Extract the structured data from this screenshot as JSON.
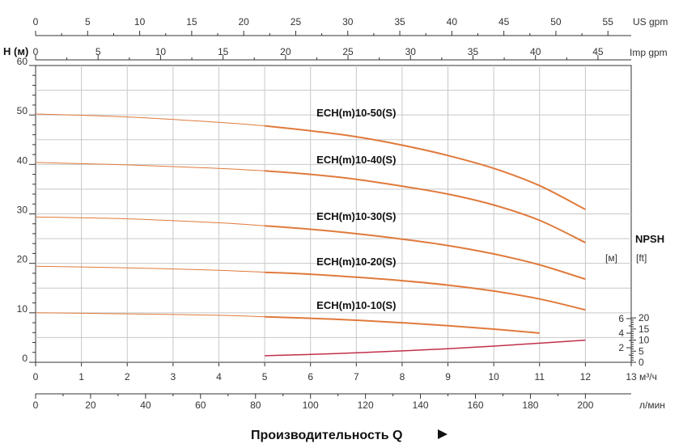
{
  "colors": {
    "head_curve": "#e07a3c",
    "npsh_curve": "#c0304a",
    "grid": "#c8c8c8",
    "axis": "#333333"
  },
  "chart_data": {
    "type": "line",
    "title": "",
    "xlabel": "Производительность Q",
    "ylabel": "H (м)",
    "x_unit": "м³/ч",
    "xlim": [
      0,
      13
    ],
    "ylim": [
      0,
      60
    ],
    "grid": true,
    "x_ticks": [
      0,
      1,
      2,
      3,
      4,
      5,
      6,
      7,
      8,
      9,
      10,
      11,
      12,
      13
    ],
    "y_ticks": [
      0,
      10,
      20,
      30,
      40,
      50,
      60
    ],
    "secondary_axes": {
      "us_gpm": {
        "unit": "US gpm",
        "ticks": [
          0,
          5,
          10,
          15,
          20,
          25,
          30,
          35,
          40,
          45,
          50,
          55
        ],
        "per_m3h": 4.4029
      },
      "imp_gpm": {
        "unit": "Imp gpm",
        "ticks": [
          0,
          5,
          10,
          15,
          20,
          25,
          30,
          35,
          40,
          45
        ],
        "per_m3h": 3.6662
      },
      "l_min": {
        "unit": "л/мин",
        "ticks": [
          0,
          20,
          40,
          60,
          80,
          100,
          120,
          140,
          160,
          180,
          200
        ],
        "per_m3h": 16.6667
      }
    },
    "npsh_axis": {
      "title": "NPSH",
      "m_unit": "[м]",
      "ft_unit": "[ft]",
      "m_ticks": [
        2,
        4,
        6
      ],
      "ft_ticks": [
        0,
        5,
        10,
        15,
        20
      ],
      "m_labeled": [
        2,
        4,
        6
      ],
      "ft_labeled": [
        0,
        5,
        10,
        15,
        20
      ]
    },
    "series": [
      {
        "name": "ECH(m)10-50(S)",
        "x": [
          0,
          2,
          4,
          5,
          6,
          7,
          8,
          9,
          10,
          11,
          12
        ],
        "y": [
          50.2,
          49.6,
          48.5,
          47.8,
          46.8,
          45.6,
          43.9,
          41.8,
          39.2,
          35.7,
          30.9
        ]
      },
      {
        "name": "ECH(m)10-40(S)",
        "x": [
          0,
          2,
          4,
          5,
          6,
          7,
          8,
          9,
          10,
          11,
          12
        ],
        "y": [
          40.4,
          39.9,
          39.2,
          38.7,
          38.0,
          37.0,
          35.6,
          34.0,
          31.8,
          28.7,
          24.2
        ]
      },
      {
        "name": "ECH(m)10-30(S)",
        "x": [
          0,
          2,
          4,
          5,
          6,
          7,
          8,
          9,
          10,
          11,
          12
        ],
        "y": [
          29.4,
          29.0,
          28.2,
          27.6,
          26.9,
          26.0,
          24.9,
          23.6,
          21.9,
          19.7,
          16.8
        ]
      },
      {
        "name": "ECH(m)10-20(S)",
        "x": [
          0,
          2,
          4,
          5,
          6,
          7,
          8,
          9,
          10,
          11,
          12
        ],
        "y": [
          19.4,
          19.1,
          18.6,
          18.2,
          17.8,
          17.2,
          16.5,
          15.6,
          14.4,
          12.8,
          10.6
        ]
      },
      {
        "name": "ECH(m)10-10(S)",
        "x": [
          0,
          2,
          4,
          5,
          6,
          7,
          8,
          9,
          10,
          11
        ],
        "y": [
          10.0,
          9.8,
          9.5,
          9.2,
          8.9,
          8.5,
          8.0,
          7.4,
          6.7,
          5.9
        ]
      }
    ],
    "npsh_series": {
      "unit": "m",
      "x": [
        5,
        6,
        7,
        8,
        9,
        10,
        11,
        12
      ],
      "y": [
        0.9,
        1.08,
        1.3,
        1.57,
        1.87,
        2.22,
        2.62,
        3.05
      ]
    }
  }
}
